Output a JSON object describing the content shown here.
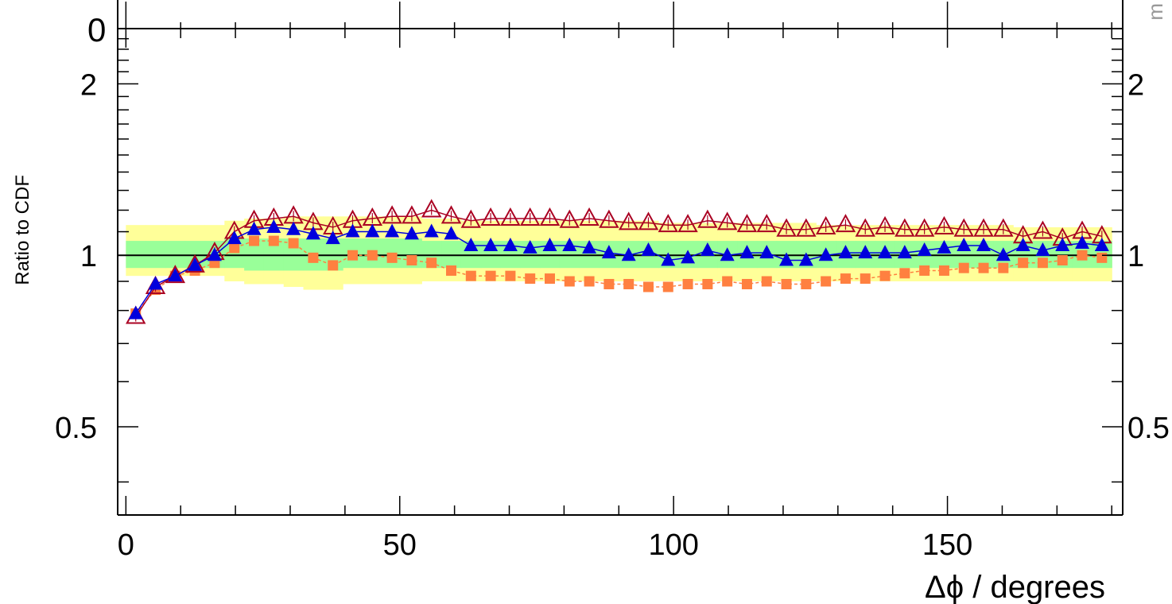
{
  "chart_data": {
    "type": "line",
    "xlabel": "Δϕ / degrees",
    "ylabel": "Ratio to CDF",
    "x_tick_labels": [
      "0",
      "50",
      "100",
      "150"
    ],
    "y_tick_labels": [
      "0.5",
      "1",
      "2"
    ],
    "xlim": [
      -1.5,
      182
    ],
    "ylim": [
      0.35,
      2.5
    ],
    "log_y": true,
    "reference_line": 1,
    "clipped_top_label": "0",
    "clipped_right_text": "m",
    "colors": {
      "band_outer": "#ffff99",
      "band_inner": "#99ff99",
      "squares": "#ff8040",
      "open_triangles": "#aa0022",
      "filled_triangles": "#0000dd"
    },
    "x": [
      1.8,
      5.4,
      9.0,
      12.6,
      16.2,
      19.8,
      23.4,
      27.0,
      30.6,
      34.2,
      37.8,
      41.4,
      45.0,
      48.6,
      52.2,
      55.8,
      59.4,
      63.0,
      66.6,
      70.2,
      73.8,
      77.4,
      81.0,
      84.6,
      88.2,
      91.8,
      95.4,
      99.0,
      102.6,
      106.2,
      109.8,
      113.4,
      117.0,
      120.6,
      124.2,
      127.8,
      131.4,
      135.0,
      138.6,
      142.2,
      145.8,
      149.4,
      153.0,
      156.6,
      160.2,
      163.8,
      167.4,
      171.0,
      174.6,
      178.2
    ],
    "bands": {
      "outer_low": [
        0.92,
        0.92,
        0.92,
        0.92,
        0.92,
        0.9,
        0.89,
        0.89,
        0.88,
        0.87,
        0.87,
        0.89,
        0.89,
        0.89,
        0.89,
        0.9,
        0.9,
        0.9,
        0.9,
        0.9,
        0.9,
        0.9,
        0.9,
        0.9,
        0.9,
        0.9,
        0.9,
        0.9,
        0.9,
        0.9,
        0.9,
        0.9,
        0.9,
        0.9,
        0.9,
        0.9,
        0.9,
        0.9,
        0.9,
        0.9,
        0.9,
        0.9,
        0.9,
        0.9,
        0.9,
        0.9,
        0.9,
        0.9,
        0.9,
        0.9
      ],
      "outer_high": [
        1.13,
        1.13,
        1.13,
        1.13,
        1.13,
        1.15,
        1.16,
        1.16,
        1.17,
        1.17,
        1.17,
        1.17,
        1.17,
        1.17,
        1.17,
        1.16,
        1.16,
        1.15,
        1.15,
        1.15,
        1.15,
        1.15,
        1.15,
        1.15,
        1.15,
        1.15,
        1.15,
        1.14,
        1.14,
        1.14,
        1.14,
        1.14,
        1.14,
        1.14,
        1.14,
        1.13,
        1.13,
        1.13,
        1.13,
        1.13,
        1.13,
        1.13,
        1.13,
        1.13,
        1.13,
        1.12,
        1.12,
        1.12,
        1.12,
        1.12
      ],
      "inner_low": [
        0.95,
        0.95,
        0.95,
        0.95,
        0.95,
        0.95,
        0.94,
        0.94,
        0.94,
        0.94,
        0.94,
        0.95,
        0.95,
        0.95,
        0.95,
        0.95,
        0.95,
        0.95,
        0.95,
        0.95,
        0.95,
        0.95,
        0.95,
        0.95,
        0.95,
        0.95,
        0.95,
        0.95,
        0.95,
        0.95,
        0.95,
        0.95,
        0.95,
        0.95,
        0.95,
        0.95,
        0.95,
        0.95,
        0.95,
        0.95,
        0.95,
        0.95,
        0.95,
        0.95,
        0.95,
        0.95,
        0.95,
        0.95,
        0.95,
        0.95
      ],
      "inner_high": [
        1.06,
        1.06,
        1.06,
        1.06,
        1.06,
        1.07,
        1.07,
        1.07,
        1.07,
        1.07,
        1.07,
        1.07,
        1.07,
        1.07,
        1.07,
        1.06,
        1.06,
        1.06,
        1.06,
        1.06,
        1.06,
        1.06,
        1.06,
        1.06,
        1.06,
        1.06,
        1.06,
        1.06,
        1.06,
        1.06,
        1.06,
        1.06,
        1.06,
        1.06,
        1.06,
        1.06,
        1.06,
        1.06,
        1.06,
        1.06,
        1.06,
        1.06,
        1.06,
        1.06,
        1.06,
        1.06,
        1.06,
        1.06,
        1.06,
        1.06
      ]
    },
    "series": [
      {
        "marker": "filled-square",
        "values": [
          0.79,
          0.87,
          0.92,
          0.94,
          0.97,
          1.03,
          1.06,
          1.06,
          1.05,
          0.99,
          0.96,
          1.0,
          1.0,
          0.99,
          0.98,
          0.97,
          0.94,
          0.92,
          0.92,
          0.92,
          0.91,
          0.91,
          0.9,
          0.9,
          0.89,
          0.89,
          0.88,
          0.88,
          0.89,
          0.89,
          0.9,
          0.89,
          0.9,
          0.89,
          0.89,
          0.9,
          0.91,
          0.91,
          0.92,
          0.93,
          0.94,
          0.94,
          0.95,
          0.95,
          0.95,
          0.97,
          0.97,
          0.98,
          1.0,
          0.99
        ]
      },
      {
        "marker": "open-triangle",
        "values": [
          0.78,
          0.88,
          0.92,
          0.96,
          1.01,
          1.1,
          1.15,
          1.16,
          1.17,
          1.14,
          1.12,
          1.15,
          1.16,
          1.17,
          1.17,
          1.2,
          1.17,
          1.15,
          1.16,
          1.16,
          1.16,
          1.16,
          1.15,
          1.16,
          1.15,
          1.14,
          1.14,
          1.13,
          1.13,
          1.15,
          1.14,
          1.13,
          1.13,
          1.11,
          1.11,
          1.12,
          1.13,
          1.11,
          1.12,
          1.11,
          1.11,
          1.12,
          1.11,
          1.11,
          1.11,
          1.08,
          1.1,
          1.07,
          1.1,
          1.08
        ]
      },
      {
        "marker": "filled-triangle",
        "values": [
          0.79,
          0.89,
          0.92,
          0.96,
          1.0,
          1.07,
          1.11,
          1.12,
          1.11,
          1.09,
          1.07,
          1.1,
          1.1,
          1.1,
          1.09,
          1.1,
          1.09,
          1.04,
          1.04,
          1.04,
          1.03,
          1.04,
          1.04,
          1.03,
          1.01,
          1.0,
          1.02,
          0.98,
          0.99,
          1.02,
          1.0,
          1.01,
          1.01,
          0.98,
          0.98,
          1.0,
          1.01,
          1.01,
          1.01,
          1.01,
          1.02,
          1.03,
          1.04,
          1.04,
          1.0,
          1.04,
          1.02,
          1.04,
          1.05,
          1.04
        ]
      }
    ]
  }
}
